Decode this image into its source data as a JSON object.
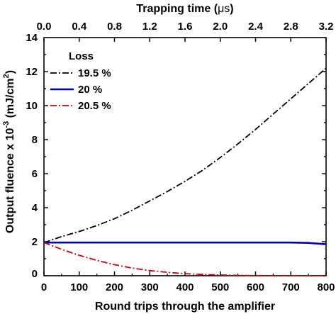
{
  "chart_data": {
    "type": "line",
    "title": "",
    "xlabel": "Round trips through the amplifier",
    "xlim": [
      0,
      800
    ],
    "xticks": [
      0,
      100,
      200,
      300,
      400,
      500,
      600,
      700,
      800
    ],
    "x2label_prefix": "Trapping time (",
    "x2label_unit": "μs",
    "x2label_suffix": ")",
    "x2lim": [
      0.0,
      3.2
    ],
    "x2ticks": [
      "0.0",
      "0.4",
      "0.8",
      "1.2",
      "1.6",
      "2.0",
      "2.4",
      "2.8",
      "3.2"
    ],
    "ylabel_prefix": "Output fluence x 10",
    "ylabel_exp": "-3",
    "ylabel_unit_prefix": " (mJ/cm",
    "ylabel_unit_exp": "2",
    "ylabel_suffix": ")",
    "ylim": [
      0,
      14
    ],
    "yticks": [
      2,
      4,
      6,
      8,
      10,
      12,
      14
    ],
    "x_origin_label": "0",
    "grid": false,
    "legend_title": "Loss",
    "legend_position": "top-left",
    "series": [
      {
        "name": "19.5 %",
        "color": "#000000",
        "dash": "dashdot",
        "x": [
          0,
          50,
          100,
          150,
          200,
          250,
          300,
          350,
          400,
          450,
          500,
          550,
          600,
          650,
          700,
          750,
          800
        ],
        "y": [
          1.95,
          2.3,
          2.6,
          2.95,
          3.35,
          3.85,
          4.4,
          4.95,
          5.55,
          6.2,
          6.95,
          7.75,
          8.6,
          9.5,
          10.4,
          11.3,
          12.2
        ]
      },
      {
        "name": "20  %",
        "color": "#0000cc",
        "dash": "solid",
        "x": [
          0,
          100,
          200,
          300,
          400,
          500,
          600,
          700,
          750,
          800
        ],
        "y": [
          1.95,
          1.95,
          1.95,
          1.95,
          1.95,
          1.95,
          1.95,
          1.95,
          1.93,
          1.85
        ]
      },
      {
        "name": "20.5 %",
        "color": "#cc0000",
        "dash": "dashdot",
        "x": [
          0,
          50,
          100,
          150,
          200,
          250,
          300,
          350,
          400,
          450,
          500,
          550,
          600,
          650,
          700,
          750,
          800
        ],
        "y": [
          1.95,
          1.55,
          1.2,
          0.9,
          0.65,
          0.45,
          0.3,
          0.2,
          0.12,
          0.07,
          0.04,
          0.02,
          0.01,
          0.0,
          0.0,
          0.0,
          0.0
        ]
      }
    ]
  }
}
